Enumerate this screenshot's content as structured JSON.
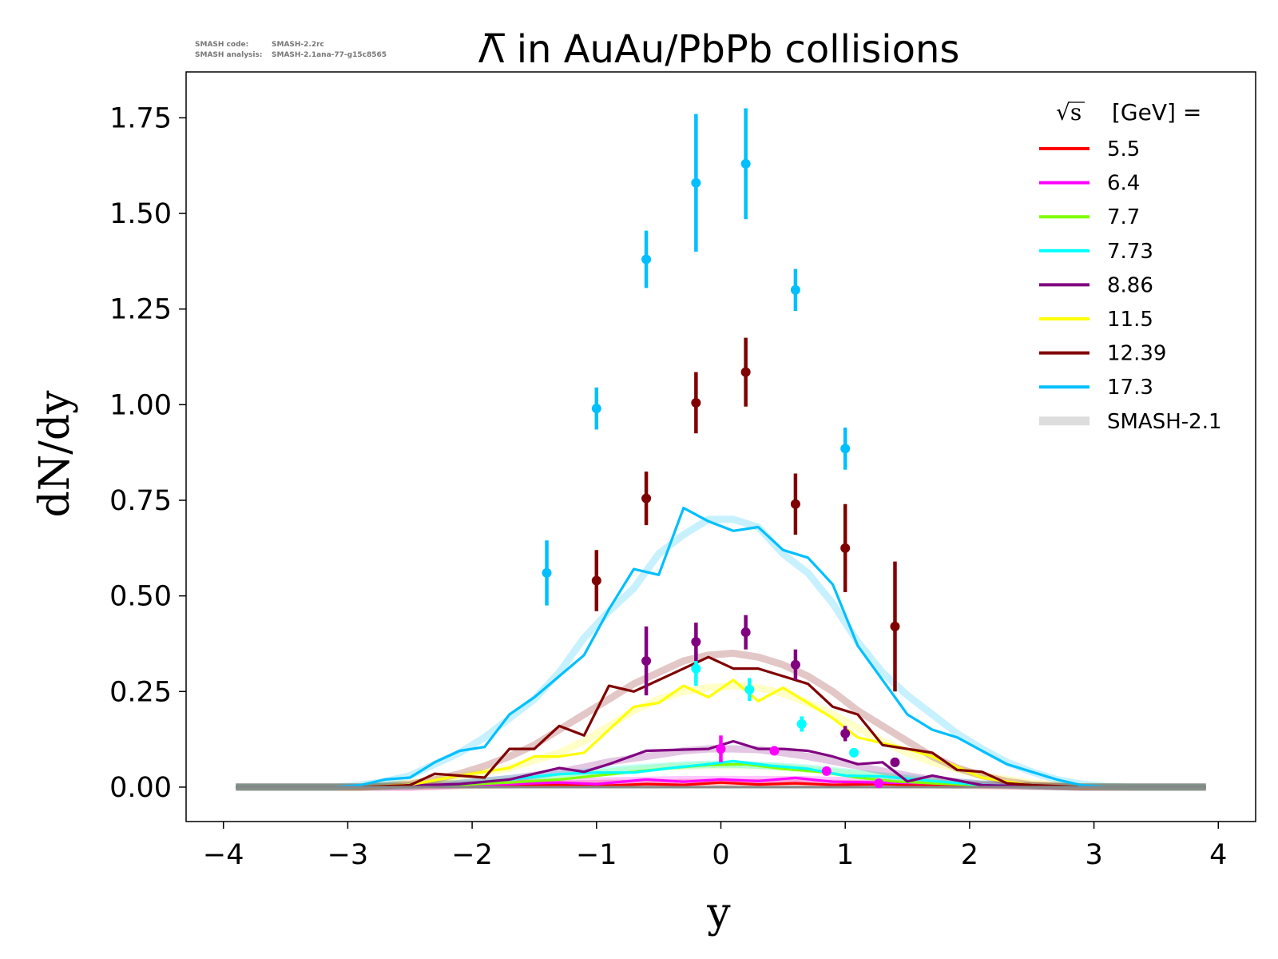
{
  "meta": {
    "code_label": "SMASH code:",
    "code_value": "SMASH-2.2rc",
    "analysis_label": "SMASH analysis:",
    "analysis_value": "SMASH-2.1ana-77-g15c8565"
  },
  "chart_data": {
    "type": "line",
    "title": "Λ̅ in AuAu/PbPb collisions",
    "xlabel": "y",
    "ylabel": "dN/dy",
    "xlim": [
      -4.3,
      4.3
    ],
    "ylim": [
      -0.09,
      1.87
    ],
    "xticks": [
      -4,
      -3,
      -2,
      -1,
      0,
      1,
      2,
      3,
      4
    ],
    "xtick_labels": [
      "−4",
      "−3",
      "−2",
      "−1",
      "0",
      "1",
      "2",
      "3",
      "4"
    ],
    "yticks": [
      0,
      0.25,
      0.5,
      0.75,
      1.0,
      1.25,
      1.5,
      1.75
    ],
    "ytick_labels": [
      "0.00",
      "0.25",
      "0.50",
      "0.75",
      "1.00",
      "1.25",
      "1.50",
      "1.75"
    ],
    "legend": {
      "position": "top-right",
      "title_symbol": "√s",
      "title_suffix": "[GeV] =",
      "entries": [
        {
          "label": "5.5",
          "color": "#ff0000"
        },
        {
          "label": "6.4",
          "color": "#ff00ff"
        },
        {
          "label": "7.7",
          "color": "#7fff00"
        },
        {
          "label": "7.73",
          "color": "#00ffff"
        },
        {
          "label": "8.86",
          "color": "#800080"
        },
        {
          "label": "11.5",
          "color": "#ffff00"
        },
        {
          "label": "12.39",
          "color": "#800000"
        },
        {
          "label": "17.3",
          "color": "#00bfff"
        },
        {
          "label": "SMASH-2.1",
          "color": "#dddddd",
          "thick": true
        }
      ]
    },
    "series": [
      {
        "name": "5.5",
        "color": "#ff0000",
        "x": [
          -3.9,
          -3.3,
          -2.9,
          -2.5,
          -2.1,
          -1.7,
          -1.3,
          -0.9,
          -0.6,
          -0.3,
          0,
          0.3,
          0.6,
          0.9,
          1.3,
          1.7,
          2.1,
          2.5,
          2.9,
          3.3,
          3.9
        ],
        "y": [
          0,
          0,
          0,
          0,
          0.002,
          0.004,
          0.006,
          0.004,
          0.008,
          0.006,
          0.012,
          0.007,
          0.01,
          0.006,
          0.008,
          0.004,
          0.003,
          0.001,
          0,
          0,
          0
        ],
        "ref_y": [
          0,
          0,
          0,
          0,
          0.004,
          0.006,
          0.008,
          0.01,
          0.01,
          0.012,
          0.012,
          0.012,
          0.01,
          0.01,
          0.008,
          0.006,
          0.004,
          0.002,
          0,
          0,
          0
        ]
      },
      {
        "name": "6.4",
        "color": "#ff00ff",
        "x": [
          -3.9,
          -3.3,
          -2.9,
          -2.5,
          -2.1,
          -1.7,
          -1.3,
          -1.0,
          -0.6,
          -0.3,
          0,
          0.3,
          0.6,
          0.9,
          1.3,
          1.7,
          2.1,
          2.5,
          2.9,
          3.3,
          3.9
        ],
        "y": [
          0,
          0,
          0,
          0,
          0.004,
          0.008,
          0.012,
          0.008,
          0.02,
          0.014,
          0.02,
          0.016,
          0.024,
          0.014,
          0.012,
          0.01,
          0.006,
          0.002,
          0,
          0,
          0
        ],
        "ref_y": [
          0,
          0,
          0,
          0,
          0.006,
          0.01,
          0.014,
          0.016,
          0.018,
          0.02,
          0.02,
          0.02,
          0.02,
          0.018,
          0.014,
          0.01,
          0.006,
          0.003,
          0,
          0,
          0
        ],
        "points": [
          {
            "x": 0.0,
            "y": 0.1,
            "err": 0.035
          },
          {
            "x": 0.43,
            "y": 0.095,
            "err": 0.012
          },
          {
            "x": 0.85,
            "y": 0.042,
            "err": 0.008
          },
          {
            "x": 1.27,
            "y": 0.01,
            "err": 0.005
          }
        ]
      },
      {
        "name": "7.7",
        "color": "#7fff00",
        "x": [
          -3.9,
          -3.3,
          -2.9,
          -2.5,
          -2.1,
          -1.7,
          -1.3,
          -1.0,
          -0.7,
          -0.4,
          -0.1,
          0.2,
          0.5,
          0.8,
          1.1,
          1.4,
          1.7,
          2.1,
          2.5,
          2.9,
          3.3,
          3.9
        ],
        "y": [
          0,
          0,
          0,
          0.002,
          0.006,
          0.012,
          0.02,
          0.03,
          0.04,
          0.05,
          0.058,
          0.06,
          0.048,
          0.04,
          0.025,
          0.015,
          0.01,
          0.005,
          0.002,
          0,
          0,
          0
        ],
        "ref_y": [
          0,
          0,
          0,
          0.003,
          0.008,
          0.016,
          0.026,
          0.036,
          0.046,
          0.054,
          0.058,
          0.058,
          0.052,
          0.044,
          0.034,
          0.024,
          0.014,
          0.007,
          0.003,
          0,
          0,
          0
        ]
      },
      {
        "name": "7.73",
        "color": "#00ffff",
        "x": [
          -3.9,
          -3.3,
          -2.9,
          -2.5,
          -2.1,
          -1.7,
          -1.3,
          -1.0,
          -0.7,
          -0.4,
          -0.1,
          0.1,
          0.4,
          0.7,
          1.0,
          1.3,
          1.7,
          2.1,
          2.5,
          2.9,
          3.3,
          3.9
        ],
        "y": [
          0,
          0,
          0,
          0.002,
          0.008,
          0.02,
          0.034,
          0.038,
          0.038,
          0.05,
          0.06,
          0.068,
          0.056,
          0.048,
          0.03,
          0.028,
          0.016,
          0.006,
          0.002,
          0,
          0,
          0
        ],
        "ref_y": [
          0,
          0,
          0,
          0.003,
          0.01,
          0.022,
          0.034,
          0.042,
          0.05,
          0.056,
          0.06,
          0.06,
          0.056,
          0.05,
          0.04,
          0.03,
          0.018,
          0.008,
          0.003,
          0,
          0,
          0
        ],
        "points": [
          {
            "x": -0.2,
            "y": 0.31,
            "err": 0.045
          },
          {
            "x": 0.23,
            "y": 0.255,
            "err": 0.03
          },
          {
            "x": 0.65,
            "y": 0.165,
            "err": 0.02
          },
          {
            "x": 1.07,
            "y": 0.09,
            "err": 0.012
          }
        ]
      },
      {
        "name": "8.86",
        "color": "#800080",
        "x": [
          -3.9,
          -3.3,
          -2.9,
          -2.5,
          -2.1,
          -1.7,
          -1.3,
          -1.1,
          -0.9,
          -0.6,
          -0.3,
          -0.1,
          0.1,
          0.3,
          0.5,
          0.7,
          0.9,
          1.1,
          1.3,
          1.5,
          1.7,
          2.1,
          2.5,
          2.9,
          3.3,
          3.9
        ],
        "y": [
          0,
          0,
          0,
          0.004,
          0.008,
          0.02,
          0.05,
          0.04,
          0.06,
          0.095,
          0.098,
          0.1,
          0.12,
          0.1,
          0.1,
          0.095,
          0.08,
          0.06,
          0.065,
          0.015,
          0.03,
          0.005,
          0.002,
          0,
          0,
          0
        ],
        "ref_y": [
          0,
          0,
          0,
          0.004,
          0.01,
          0.022,
          0.04,
          0.052,
          0.066,
          0.08,
          0.095,
          0.1,
          0.1,
          0.098,
          0.09,
          0.08,
          0.068,
          0.055,
          0.042,
          0.03,
          0.02,
          0.008,
          0.003,
          0,
          0,
          0
        ],
        "points": [
          {
            "x": -0.6,
            "y": 0.33,
            "err": 0.09
          },
          {
            "x": -0.2,
            "y": 0.38,
            "err": 0.05
          },
          {
            "x": 0.2,
            "y": 0.405,
            "err": 0.045
          },
          {
            "x": 0.6,
            "y": 0.32,
            "err": 0.04
          },
          {
            "x": 1.0,
            "y": 0.14,
            "err": 0.02
          },
          {
            "x": 1.4,
            "y": 0.065,
            "err": 0.012
          }
        ]
      },
      {
        "name": "11.5",
        "color": "#ffff00",
        "x": [
          -3.9,
          -3.3,
          -2.9,
          -2.5,
          -2.1,
          -1.7,
          -1.5,
          -1.3,
          -1.1,
          -0.9,
          -0.7,
          -0.5,
          -0.3,
          -0.1,
          0.1,
          0.3,
          0.5,
          0.7,
          0.9,
          1.1,
          1.3,
          1.5,
          1.7,
          2.1,
          2.5,
          2.9,
          3.3,
          3.9
        ],
        "y": [
          0,
          0,
          0,
          0.006,
          0.03,
          0.05,
          0.08,
          0.08,
          0.09,
          0.15,
          0.21,
          0.22,
          0.265,
          0.235,
          0.28,
          0.225,
          0.26,
          0.22,
          0.18,
          0.13,
          0.115,
          0.1,
          0.08,
          0.025,
          0.004,
          0,
          0,
          0
        ],
        "ref_y": [
          0,
          0,
          0,
          0.01,
          0.028,
          0.05,
          0.07,
          0.09,
          0.12,
          0.16,
          0.2,
          0.23,
          0.25,
          0.26,
          0.265,
          0.26,
          0.245,
          0.22,
          0.19,
          0.155,
          0.12,
          0.09,
          0.065,
          0.03,
          0.01,
          0.002,
          0,
          0
        ]
      },
      {
        "name": "12.39",
        "color": "#800000",
        "x": [
          -3.9,
          -3.3,
          -2.9,
          -2.5,
          -2.3,
          -2.1,
          -1.9,
          -1.7,
          -1.5,
          -1.3,
          -1.1,
          -0.9,
          -0.7,
          -0.5,
          -0.3,
          -0.1,
          0.1,
          0.3,
          0.5,
          0.7,
          0.9,
          1.1,
          1.3,
          1.5,
          1.7,
          1.9,
          2.1,
          2.3,
          2.5,
          2.9,
          3.3,
          3.9
        ],
        "y": [
          0,
          0,
          0,
          0.005,
          0.035,
          0.03,
          0.025,
          0.1,
          0.1,
          0.16,
          0.135,
          0.265,
          0.25,
          0.28,
          0.31,
          0.34,
          0.31,
          0.31,
          0.29,
          0.27,
          0.21,
          0.19,
          0.11,
          0.1,
          0.09,
          0.045,
          0.04,
          0.01,
          0.005,
          0,
          0,
          0
        ],
        "ref_y": [
          0,
          0,
          0,
          0.008,
          0.02,
          0.035,
          0.055,
          0.08,
          0.11,
          0.15,
          0.19,
          0.23,
          0.27,
          0.3,
          0.33,
          0.345,
          0.35,
          0.34,
          0.32,
          0.29,
          0.25,
          0.2,
          0.16,
          0.12,
          0.08,
          0.05,
          0.03,
          0.015,
          0.006,
          0.001,
          0,
          0
        ],
        "points": [
          {
            "x": -1.0,
            "y": 0.54,
            "err": 0.08
          },
          {
            "x": -0.6,
            "y": 0.755,
            "err": 0.07
          },
          {
            "x": -0.2,
            "y": 1.005,
            "err": 0.08
          },
          {
            "x": 0.2,
            "y": 1.085,
            "err": 0.09
          },
          {
            "x": 0.6,
            "y": 0.74,
            "err": 0.08
          },
          {
            "x": 1.0,
            "y": 0.625,
            "err": 0.115
          },
          {
            "x": 1.4,
            "y": 0.42,
            "err": 0.17
          }
        ]
      },
      {
        "name": "17.3",
        "color": "#00bfff",
        "x": [
          -3.9,
          -3.5,
          -3.1,
          -2.9,
          -2.7,
          -2.5,
          -2.3,
          -2.1,
          -1.9,
          -1.7,
          -1.5,
          -1.3,
          -1.1,
          -0.9,
          -0.7,
          -0.5,
          -0.3,
          -0.1,
          0.1,
          0.3,
          0.5,
          0.7,
          0.9,
          1.1,
          1.3,
          1.5,
          1.7,
          1.9,
          2.1,
          2.3,
          2.5,
          2.7,
          2.9,
          3.1,
          3.3,
          3.9
        ],
        "y": [
          0,
          0,
          0,
          0.005,
          0.02,
          0.025,
          0.065,
          0.095,
          0.105,
          0.19,
          0.235,
          0.29,
          0.345,
          0.465,
          0.57,
          0.555,
          0.73,
          0.695,
          0.67,
          0.68,
          0.62,
          0.6,
          0.53,
          0.37,
          0.28,
          0.19,
          0.15,
          0.13,
          0.095,
          0.06,
          0.04,
          0.02,
          0.005,
          0,
          0,
          0
        ],
        "ref_y": [
          0,
          0,
          0,
          0.005,
          0.015,
          0.03,
          0.06,
          0.09,
          0.13,
          0.18,
          0.23,
          0.3,
          0.39,
          0.46,
          0.52,
          0.61,
          0.66,
          0.7,
          0.7,
          0.68,
          0.61,
          0.56,
          0.48,
          0.38,
          0.3,
          0.24,
          0.19,
          0.14,
          0.1,
          0.065,
          0.04,
          0.02,
          0.008,
          0.002,
          0,
          0
        ],
        "points": [
          {
            "x": -1.4,
            "y": 0.56,
            "err": 0.085
          },
          {
            "x": -1.0,
            "y": 0.99,
            "err": 0.055
          },
          {
            "x": -0.6,
            "y": 1.38,
            "err": 0.075
          },
          {
            "x": -0.2,
            "y": 1.58,
            "err": 0.18
          },
          {
            "x": 0.2,
            "y": 1.63,
            "err": 0.145
          },
          {
            "x": 0.6,
            "y": 1.3,
            "err": 0.055
          },
          {
            "x": 1.0,
            "y": 0.885,
            "err": 0.055
          }
        ]
      }
    ]
  }
}
